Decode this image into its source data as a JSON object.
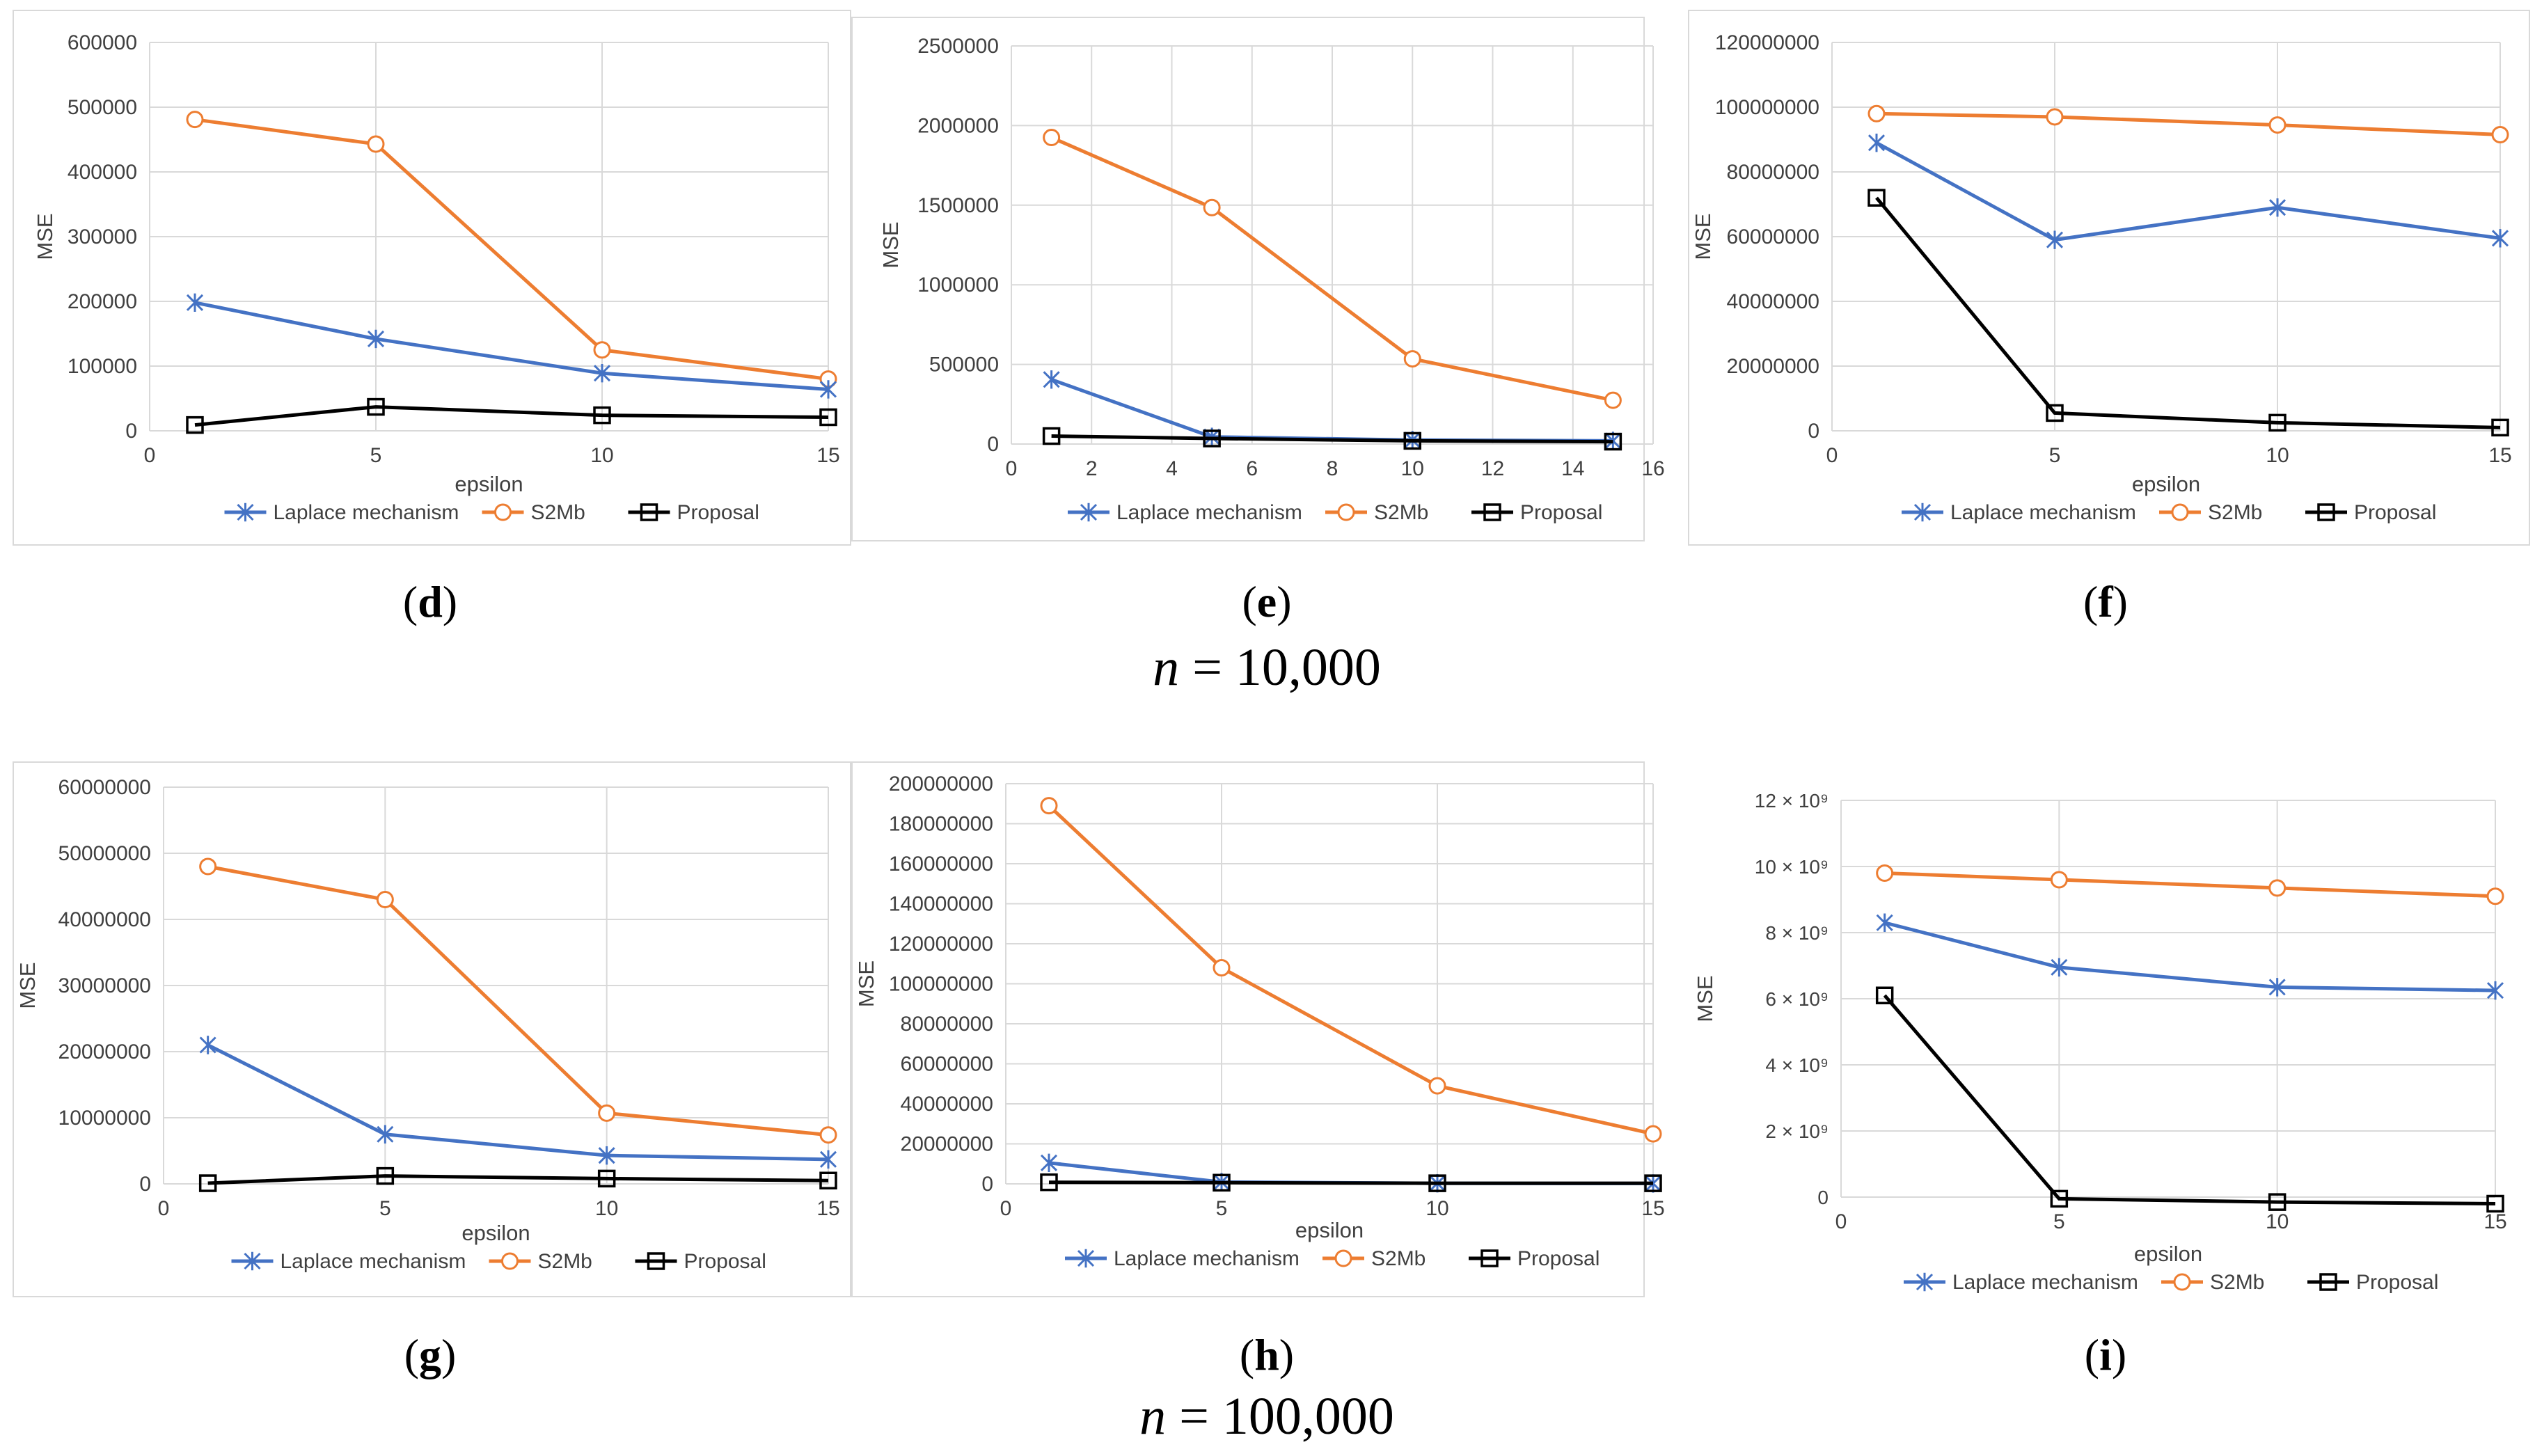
{
  "colors": {
    "laplace": "#4472c4",
    "s2mb": "#ed7d31",
    "proposal": "#000000",
    "grid": "#d9d9d9",
    "axis_text": "#595959"
  },
  "captions": [
    "(d)",
    "(e)",
    "(f)",
    "(g)",
    "(h)",
    "(i)"
  ],
  "caption_letters": [
    "d",
    "e",
    "f",
    "g",
    "h",
    "i"
  ],
  "n_labels": {
    "row1_var": "n",
    "row1_rest": " = 10,000",
    "row2_var": "n",
    "row2_rest": " = 100,000"
  },
  "chart_data": [
    {
      "id": "d",
      "type": "line",
      "xlabel": "epsilon",
      "ylabel": "MSE",
      "xlim": [
        0,
        15
      ],
      "xticks": [
        "0",
        "5",
        "10",
        "15"
      ],
      "xtick_values": [
        0,
        5,
        10,
        15
      ],
      "ylim": [
        0,
        600000
      ],
      "yticks": [
        "0",
        "100000",
        "200000",
        "300000",
        "400000",
        "500000",
        "600000"
      ],
      "ytick_values": [
        0,
        100000,
        200000,
        300000,
        400000,
        500000,
        600000
      ],
      "x": [
        1,
        5,
        10,
        15
      ],
      "series": [
        {
          "name": "Laplace mechanism",
          "values": [
            198000,
            142000,
            89000,
            64000
          ]
        },
        {
          "name": "S2Mb",
          "values": [
            481000,
            443000,
            125000,
            80000
          ]
        },
        {
          "name": "Proposal",
          "values": [
            9000,
            37000,
            24000,
            21000
          ]
        }
      ]
    },
    {
      "id": "e",
      "type": "line",
      "xlabel": "",
      "ylabel": "MSE",
      "xlim": [
        0,
        16
      ],
      "xticks": [
        "0",
        "2",
        "4",
        "6",
        "8",
        "10",
        "12",
        "14",
        "16"
      ],
      "xtick_values": [
        0,
        2,
        4,
        6,
        8,
        10,
        12,
        14,
        16
      ],
      "ylim": [
        0,
        2500000
      ],
      "yticks": [
        "0",
        "500000",
        "1000000",
        "1500000",
        "2000000",
        "2500000"
      ],
      "ytick_values": [
        0,
        500000,
        1000000,
        1500000,
        2000000,
        2500000
      ],
      "x": [
        1,
        5,
        10,
        15
      ],
      "series": [
        {
          "name": "Laplace mechanism",
          "values": [
            405000,
            45000,
            25000,
            20000
          ]
        },
        {
          "name": "S2Mb",
          "values": [
            1925000,
            1485000,
            535000,
            275000
          ]
        },
        {
          "name": "Proposal",
          "values": [
            50000,
            35000,
            20000,
            15000
          ]
        }
      ]
    },
    {
      "id": "f",
      "type": "line",
      "xlabel": "epsilon",
      "ylabel": "MSE",
      "xlim": [
        0,
        15
      ],
      "xticks": [
        "0",
        "5",
        "10",
        "15"
      ],
      "xtick_values": [
        0,
        5,
        10,
        15
      ],
      "ylim": [
        0,
        120000000
      ],
      "yticks": [
        "0",
        "20000000",
        "40000000",
        "60000000",
        "80000000",
        "100000000",
        "120000000"
      ],
      "ytick_values": [
        0,
        20000000,
        40000000,
        60000000,
        80000000,
        100000000,
        120000000
      ],
      "x": [
        1,
        5,
        10,
        15
      ],
      "series": [
        {
          "name": "Laplace mechanism",
          "values": [
            89000000,
            59000000,
            69000000,
            59500000
          ]
        },
        {
          "name": "S2Mb",
          "values": [
            98000000,
            97000000,
            94500000,
            91500000
          ]
        },
        {
          "name": "Proposal",
          "values": [
            72000000,
            5500000,
            2500000,
            1000000
          ]
        }
      ]
    },
    {
      "id": "g",
      "type": "line",
      "xlabel": "epsilon",
      "ylabel": "MSE",
      "xlim": [
        0,
        15
      ],
      "xticks": [
        "0",
        "5",
        "10",
        "15"
      ],
      "xtick_values": [
        0,
        5,
        10,
        15
      ],
      "ylim": [
        0,
        60000000
      ],
      "yticks": [
        "0",
        "10000000",
        "20000000",
        "30000000",
        "40000000",
        "50000000",
        "60000000"
      ],
      "ytick_values": [
        0,
        10000000,
        20000000,
        30000000,
        40000000,
        50000000,
        60000000
      ],
      "x": [
        1,
        5,
        10,
        15
      ],
      "series": [
        {
          "name": "Laplace mechanism",
          "values": [
            21000000,
            7500000,
            4300000,
            3700000
          ]
        },
        {
          "name": "S2Mb",
          "values": [
            48000000,
            43000000,
            10700000,
            7400000
          ]
        },
        {
          "name": "Proposal",
          "values": [
            100000,
            1200000,
            800000,
            500000
          ]
        }
      ]
    },
    {
      "id": "h",
      "type": "line",
      "xlabel": "epsilon",
      "ylabel": "MSE",
      "xlim": [
        0,
        15
      ],
      "xticks": [
        "0",
        "5",
        "10",
        "15"
      ],
      "xtick_values": [
        0,
        5,
        10,
        15
      ],
      "ylim": [
        0,
        200000000
      ],
      "yticks": [
        "0",
        "20000000",
        "40000000",
        "60000000",
        "80000000",
        "100000000",
        "120000000",
        "140000000",
        "160000000",
        "180000000",
        "200000000"
      ],
      "ytick_values": [
        0,
        20000000,
        40000000,
        60000000,
        80000000,
        100000000,
        120000000,
        140000000,
        160000000,
        180000000,
        200000000
      ],
      "x": [
        1,
        5,
        10,
        15
      ],
      "series": [
        {
          "name": "Laplace mechanism",
          "values": [
            10500000,
            900000,
            300000,
            200000
          ]
        },
        {
          "name": "S2Mb",
          "values": [
            189000000,
            108000000,
            49000000,
            25000000
          ]
        },
        {
          "name": "Proposal",
          "values": [
            800000,
            600000,
            300000,
            300000
          ]
        }
      ]
    },
    {
      "id": "i",
      "type": "line",
      "xlabel": "epsilon",
      "ylabel": "MSE",
      "xlim": [
        0,
        15
      ],
      "xticks": [
        "0",
        "5",
        "10",
        "15"
      ],
      "xtick_values": [
        0,
        5,
        10,
        15
      ],
      "ylim": [
        0,
        12
      ],
      "y_unit": "× 10^9",
      "yticks": [
        "0",
        "2 × 10⁹",
        "4 × 10⁹",
        "6 × 10⁹",
        "8 × 10⁹",
        "10 × 10⁹",
        "12 × 10⁹"
      ],
      "ytick_values": [
        0,
        2,
        4,
        6,
        8,
        10,
        12
      ],
      "x": [
        1,
        5,
        10,
        15
      ],
      "series": [
        {
          "name": "Laplace mechanism",
          "values": [
            8.3,
            6.95,
            6.35,
            6.25
          ]
        },
        {
          "name": "S2Mb",
          "values": [
            9.8,
            9.6,
            9.35,
            9.1
          ]
        },
        {
          "name": "Proposal",
          "values": [
            6.1,
            -0.05,
            -0.15,
            -0.2
          ]
        }
      ]
    }
  ]
}
